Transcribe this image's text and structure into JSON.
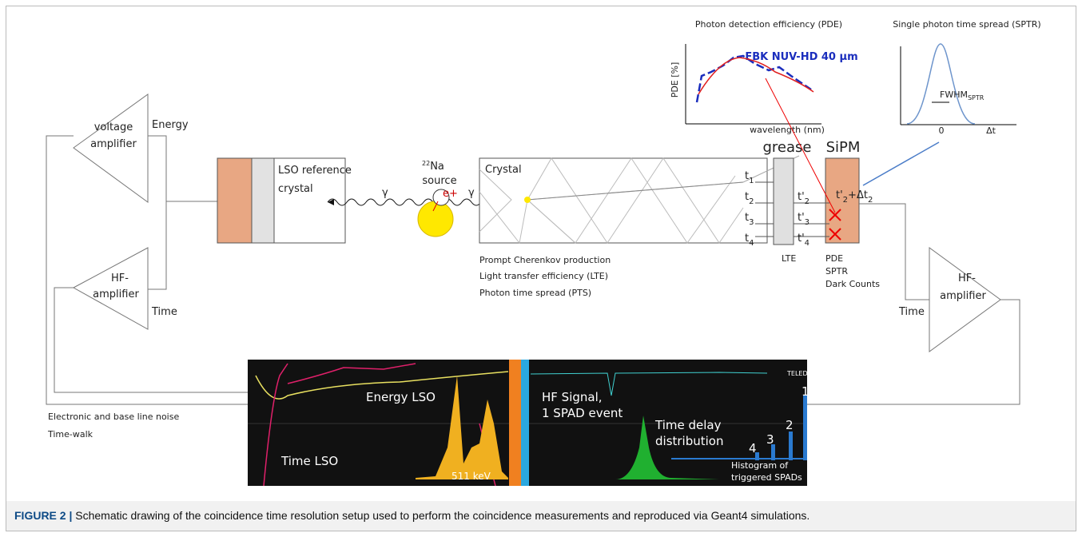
{
  "pde_plot": {
    "title": "Photon detection efficiency (PDE)",
    "ylabel": "PDE [%]",
    "xlabel": "wavelength (nm)",
    "legend": "FBK NUV-HD 40 µm"
  },
  "sptr_plot": {
    "title": "Single photon time spread (SPTR)",
    "fwhm": "FWHM",
    "fwhm_sub": "SPTR",
    "zero": "0",
    "xlabel": "Δt"
  },
  "voltage_amplifier": {
    "line1": "voltage",
    "line2": "amplifier",
    "output": "Energy"
  },
  "hf_amplifier_left": {
    "line1": "HF-",
    "line2": "amplifier",
    "output": "Time"
  },
  "hf_amplifier_right": {
    "line1": "HF-",
    "line2": "amplifier",
    "output": "Time"
  },
  "reference": {
    "line1": "LSO reference",
    "line2": "crystal"
  },
  "source": {
    "mass": "22",
    "element": "Na",
    "word": "source",
    "gamma_left": "γ",
    "gamma_right": "γ",
    "positron": "e+"
  },
  "crystal": {
    "label": "Crystal",
    "notes": [
      "Prompt Cherenkov production",
      "Light transfer efficiency (LTE)",
      "Photon time spread (PTS)"
    ]
  },
  "times": {
    "t": "t",
    "subs": [
      "1",
      "2",
      "3",
      "4"
    ],
    "tprime": "t'",
    "prime_subs": [
      "2",
      "3",
      "4"
    ],
    "sum_a": "t'",
    "sum_b": "+Δt",
    "sum_sub": "2"
  },
  "grease": {
    "label": "grease",
    "note": "LTE"
  },
  "sipm": {
    "label": "SiPM",
    "notes": [
      "PDE",
      "SPTR",
      "Dark Counts"
    ]
  },
  "noise": [
    "Electronic and base line noise",
    "Time-walk"
  ],
  "scope": {
    "energy": "Energy LSO",
    "time": "Time LSO",
    "peak": "511 keV",
    "hf1": "HF Signal,",
    "hf2": "1 SPAD event",
    "delay1": "Time delay",
    "delay2": "distribution",
    "counts": [
      "4",
      "3",
      "2",
      "1"
    ],
    "hist1": "Histogram of",
    "hist2": "triggered SPADs",
    "brand": "TELEDYNE"
  },
  "caption": {
    "label": "FIGURE 2 |",
    "text": " Schematic drawing of the coincidence time resolution setup used to perform the coincidence measurements and reproduced via Geant4 simulations."
  }
}
